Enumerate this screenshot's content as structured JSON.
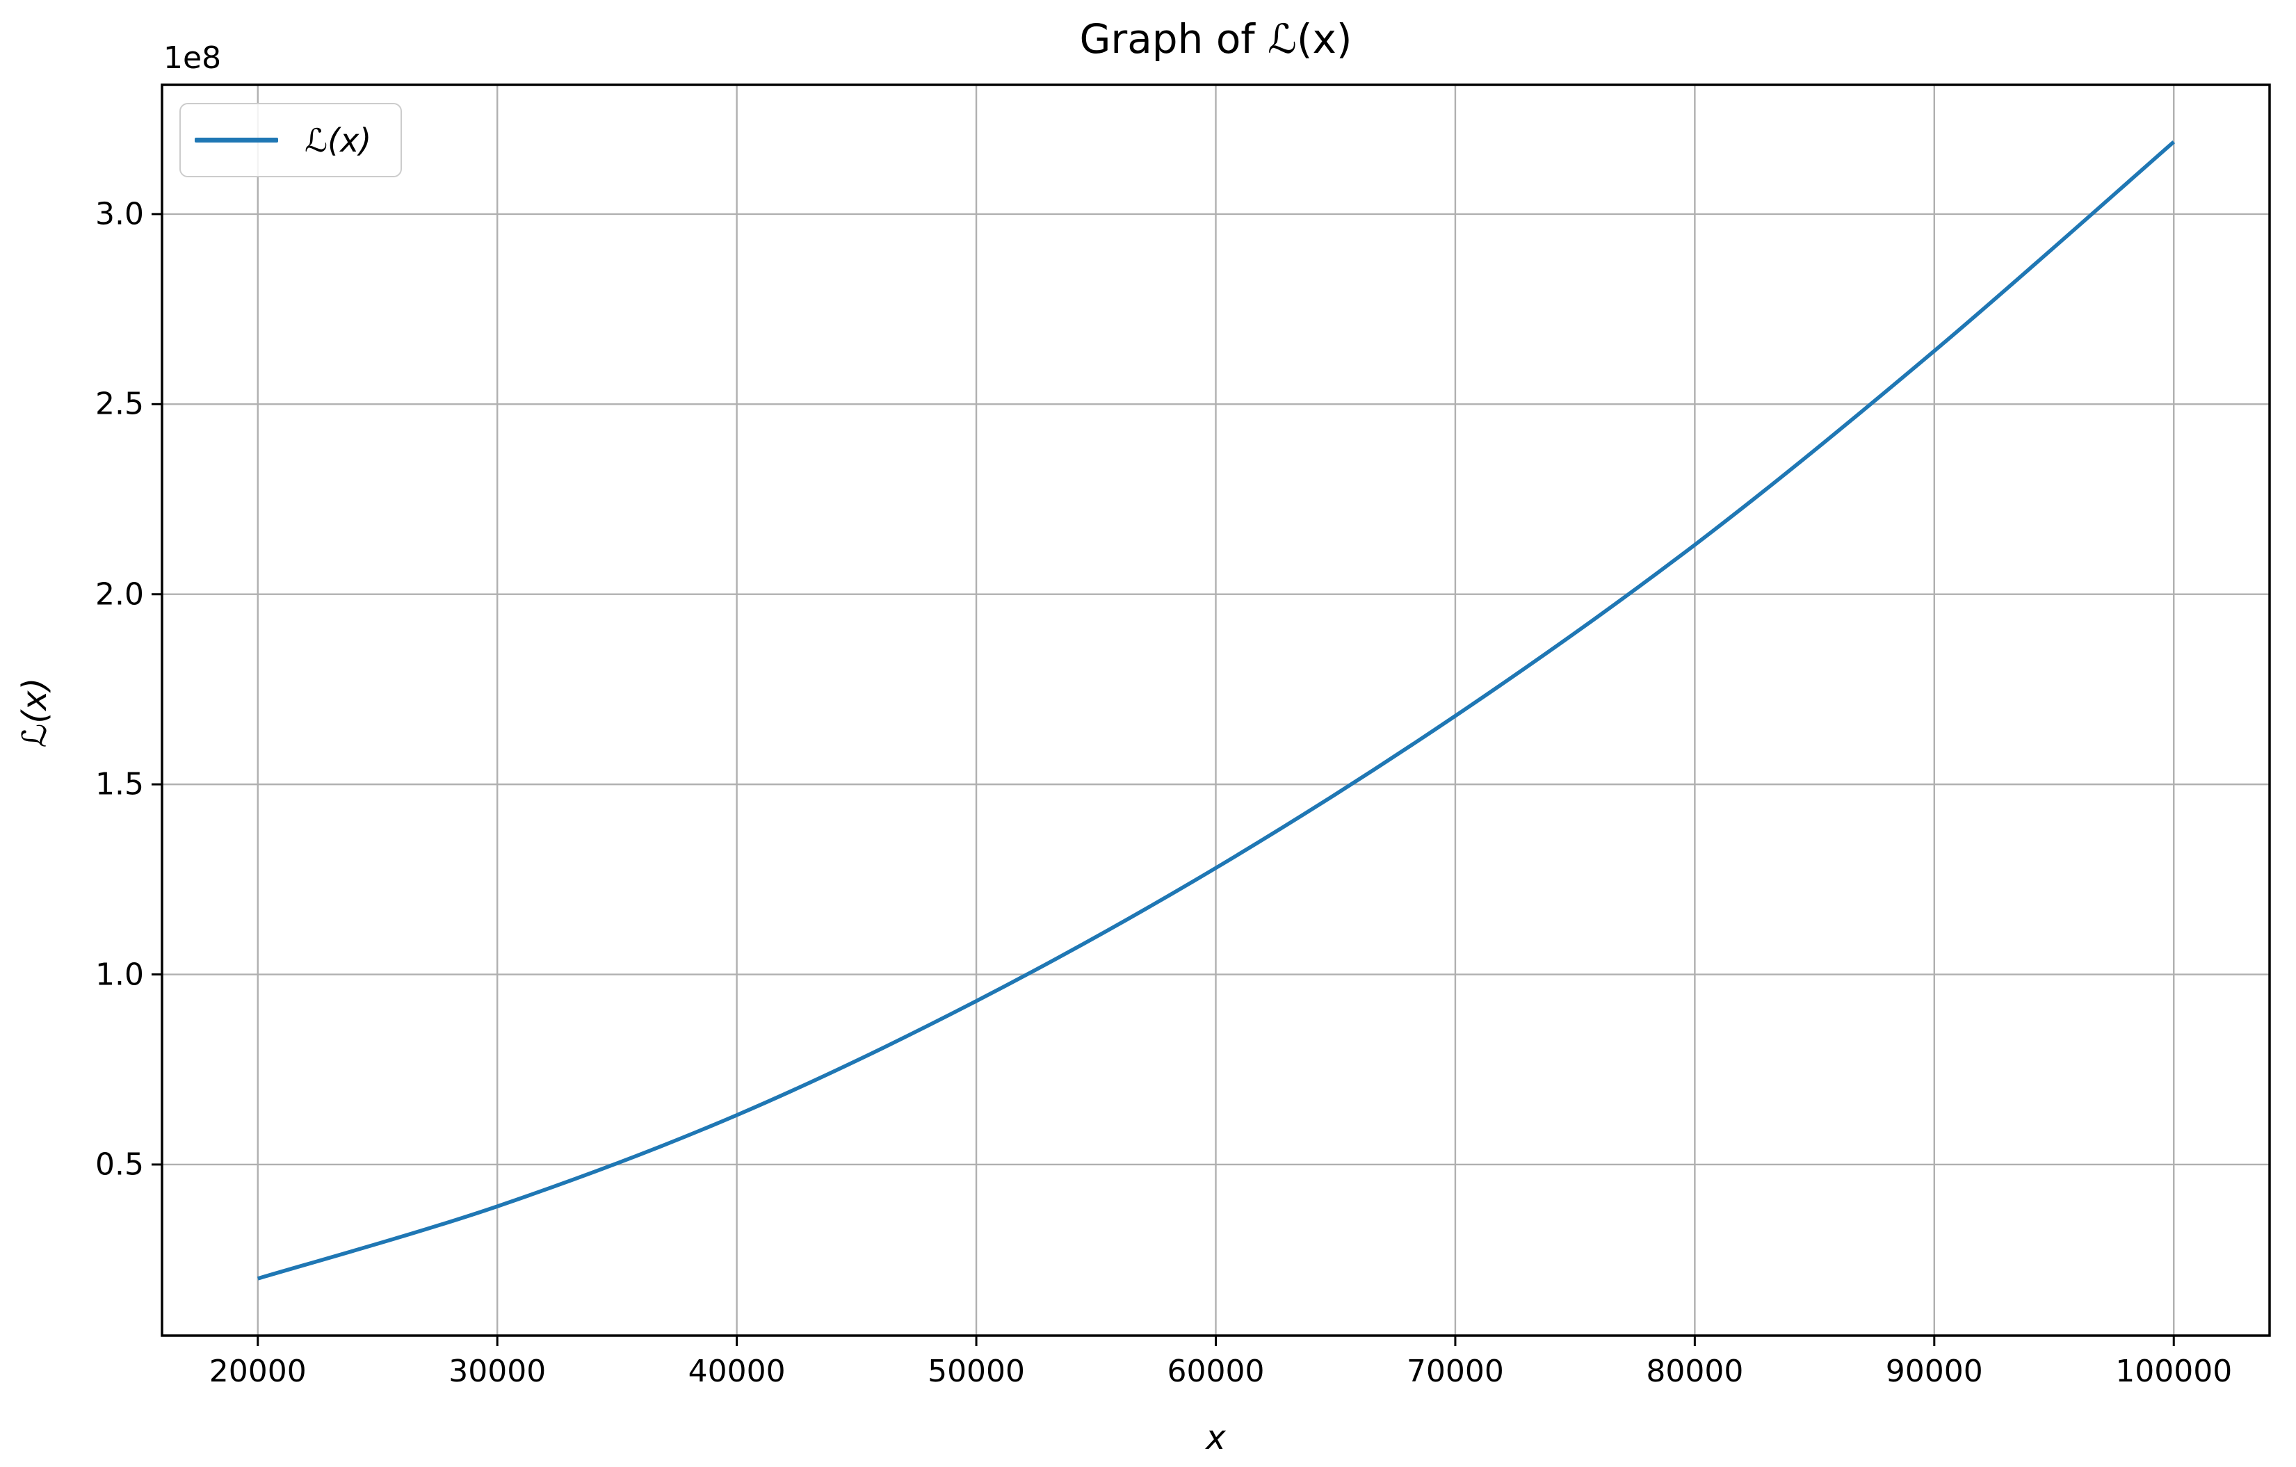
{
  "chart_data": {
    "type": "line",
    "title": "Graph of ℒ(x)",
    "xlabel": "x",
    "ylabel": "ℒ(x)",
    "y_offset_text": "1e8",
    "grid": true,
    "legend_position": "upper left",
    "xlim": [
      16000,
      104000
    ],
    "ylim": [
      5000000,
      334000000
    ],
    "xticks": [
      20000,
      30000,
      40000,
      50000,
      60000,
      70000,
      80000,
      90000,
      100000
    ],
    "xtick_labels": [
      "20000",
      "30000",
      "40000",
      "50000",
      "60000",
      "70000",
      "80000",
      "90000",
      "100000"
    ],
    "yticks": [
      50000000,
      100000000,
      150000000,
      200000000,
      250000000,
      300000000
    ],
    "ytick_labels": [
      "0.5",
      "1.0",
      "1.5",
      "2.0",
      "2.5",
      "3.0"
    ],
    "series": [
      {
        "name": "ℒ(x)",
        "color": "#1f77b4",
        "x": [
          20000,
          30000,
          40000,
          50000,
          60000,
          70000,
          80000,
          90000,
          100000
        ],
        "y": [
          20000000,
          39000000,
          63000000,
          93000000,
          128000000,
          168000000,
          213000000,
          264000000,
          319000000
        ]
      }
    ],
    "colors": {
      "grid": "#b0b0b0",
      "spine": "#000000",
      "background": "#ffffff",
      "text": "#000000"
    }
  }
}
